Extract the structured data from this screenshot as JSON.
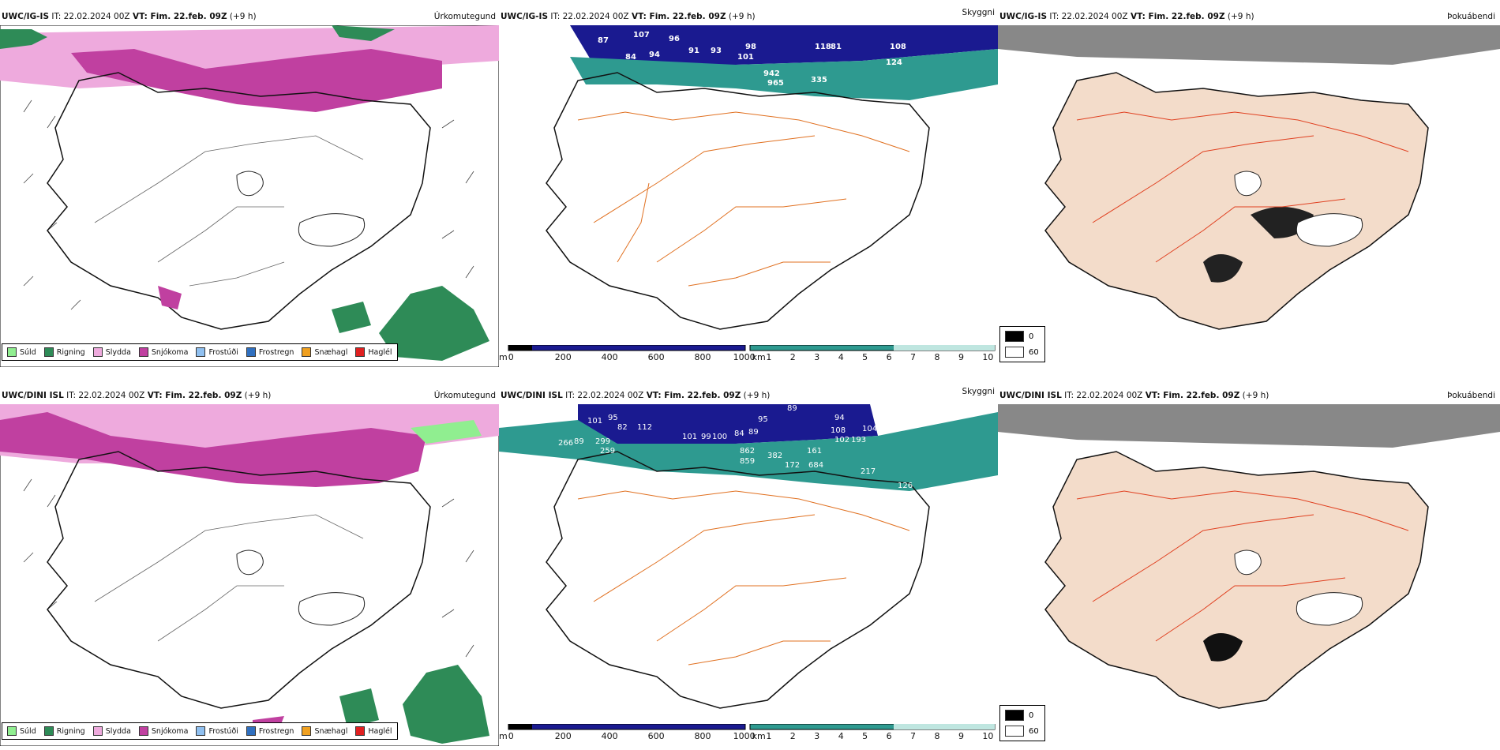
{
  "rows": [
    {
      "left": {
        "model": "UWC/IG-IS",
        "it": "IT: 22.02.2024 00Z",
        "vt": "VT: Fim. 22.feb. 09Z",
        "lead": "(+9 h)",
        "title": "Úrkomutegund"
      },
      "mid": {
        "model": "UWC/IG-IS",
        "it": "IT: 22.02.2024 00Z",
        "vt": "VT: Fim. 22.feb. 09Z",
        "lead": "(+9 h)",
        "title": "Skyggni",
        "labels": [
          "87",
          "107",
          "96",
          "84",
          "94",
          "91",
          "93",
          "98",
          "101",
          "118",
          "81",
          "108",
          "124",
          "942",
          "965",
          "335"
        ]
      },
      "right": {
        "model": "UWC/IG-IS",
        "it": "IT: 22.02.2024 00Z",
        "vt": "VT: Fim. 22.feb. 09Z",
        "lead": "(+9 h)",
        "title": "Þokuábendi"
      }
    },
    {
      "left": {
        "model": "UWC/DINI ISL",
        "it": "IT: 22.02.2024 00Z",
        "vt": "VT: Fim. 22.feb. 09Z",
        "lead": "(+9 h)",
        "title": "Úrkomutegund"
      },
      "mid": {
        "model": "UWC/DINI ISL",
        "it": "IT: 22.02.2024 00Z",
        "vt": "VT: Fim. 22.feb. 09Z",
        "lead": "(+9 h)",
        "title": "Skyggni",
        "labels": [
          "89",
          "101",
          "95",
          "94",
          "82",
          "112",
          "95",
          "101",
          "99",
          "100",
          "84",
          "89",
          "108",
          "102",
          "193",
          "104",
          "266",
          "89",
          "299",
          "259",
          "862",
          "859",
          "382",
          "172",
          "684",
          "161",
          "217",
          "126"
        ]
      },
      "right": {
        "model": "UWC/DINI ISL",
        "it": "IT: 22.02.2024 00Z",
        "vt": "VT: Fim. 22.feb. 09Z",
        "lead": "(+9 h)",
        "title": "Þokuábendi"
      }
    }
  ],
  "precip_legend": [
    {
      "label": "Súld",
      "color": "#90ee90"
    },
    {
      "label": "Rigning",
      "color": "#2e8b57"
    },
    {
      "label": "Slydda",
      "color": "#eeaadd"
    },
    {
      "label": "Snjókoma",
      "color": "#c040a0"
    },
    {
      "label": "Frostúði",
      "color": "#90c0f0"
    },
    {
      "label": "Frostregn",
      "color": "#3070c0"
    },
    {
      "label": "Snæhagl",
      "color": "#f0a020"
    },
    {
      "label": "Haglél",
      "color": "#e02020"
    }
  ],
  "vis_colorbar_m": {
    "unit": "m",
    "ticks": [
      "0",
      "200",
      "400",
      "600",
      "800",
      "1000"
    ]
  },
  "vis_colorbar_km": {
    "unit": "km",
    "ticks": [
      "1",
      "2",
      "3",
      "4",
      "5",
      "6",
      "7",
      "8",
      "9",
      "10"
    ]
  },
  "fog_legend": {
    "high": "0",
    "low": "60"
  },
  "colors": {
    "snow": "#c040a0",
    "sleet": "#eeaadd",
    "rain": "#2e8b57",
    "vis_low": "#1a1a90",
    "vis_teal": "#2e9a90",
    "road": "#e07020",
    "fog_land": "#f3dcca",
    "fog_dark": "#222222",
    "fog_cloud": "#888888"
  }
}
